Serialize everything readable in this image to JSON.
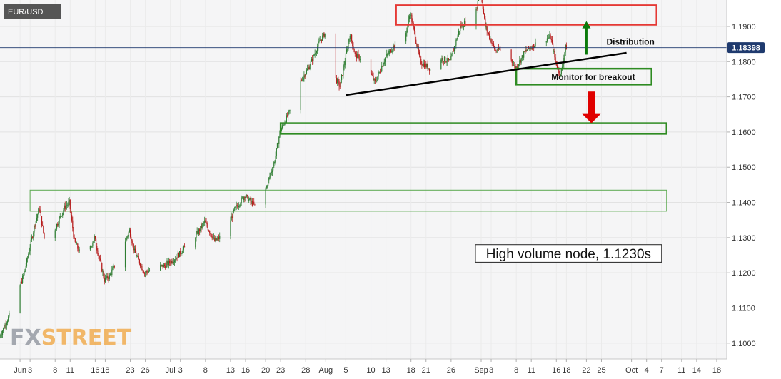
{
  "chart_data": {
    "type": "candlestick",
    "symbol": "EUR/USD",
    "current_price": 1.18398,
    "current_price_label": "1.18398",
    "ylim": [
      1.0955,
      1.1975
    ],
    "yticks": [
      1.19,
      1.18,
      1.17,
      1.16,
      1.15,
      1.14,
      1.13,
      1.12,
      1.11,
      1.1
    ],
    "ytick_labels": [
      "1.1900",
      "1.1800",
      "1.1700",
      "1.1600",
      "1.1500",
      "1.1400",
      "1.1300",
      "1.1200",
      "1.1100",
      "1.1000"
    ],
    "x_start": "2020-05-28",
    "x_end": "2020-10-20",
    "xticks": [
      {
        "date": "2020-06-01",
        "label": "Jun"
      },
      {
        "date": "2020-06-03",
        "label": "3"
      },
      {
        "date": "2020-06-08",
        "label": "8"
      },
      {
        "date": "2020-06-11",
        "label": "11"
      },
      {
        "date": "2020-06-16",
        "label": "16"
      },
      {
        "date": "2020-06-18",
        "label": "18"
      },
      {
        "date": "2020-06-23",
        "label": "23"
      },
      {
        "date": "2020-06-26",
        "label": "26"
      },
      {
        "date": "2020-07-01",
        "label": "Jul"
      },
      {
        "date": "2020-07-03",
        "label": "3"
      },
      {
        "date": "2020-07-08",
        "label": "8"
      },
      {
        "date": "2020-07-13",
        "label": "13"
      },
      {
        "date": "2020-07-16",
        "label": "16"
      },
      {
        "date": "2020-07-20",
        "label": "20"
      },
      {
        "date": "2020-07-23",
        "label": "23"
      },
      {
        "date": "2020-07-28",
        "label": "28"
      },
      {
        "date": "2020-08-01",
        "label": "Aug"
      },
      {
        "date": "2020-08-05",
        "label": "5"
      },
      {
        "date": "2020-08-10",
        "label": "10"
      },
      {
        "date": "2020-08-13",
        "label": "13"
      },
      {
        "date": "2020-08-18",
        "label": "18"
      },
      {
        "date": "2020-08-21",
        "label": "21"
      },
      {
        "date": "2020-08-26",
        "label": "26"
      },
      {
        "date": "2020-09-01",
        "label": "Sep"
      },
      {
        "date": "2020-09-03",
        "label": "3"
      },
      {
        "date": "2020-09-08",
        "label": "8"
      },
      {
        "date": "2020-09-11",
        "label": "11"
      },
      {
        "date": "2020-09-16",
        "label": "16"
      },
      {
        "date": "2020-09-18",
        "label": "18"
      },
      {
        "date": "2020-09-22",
        "label": "22"
      },
      {
        "date": "2020-09-25",
        "label": "25"
      },
      {
        "date": "2020-10-01",
        "label": "Oct"
      },
      {
        "date": "2020-10-04",
        "label": "4"
      },
      {
        "date": "2020-10-07",
        "label": "7"
      },
      {
        "date": "2020-10-11",
        "label": "11"
      },
      {
        "date": "2020-10-14",
        "label": "14"
      },
      {
        "date": "2020-10-18",
        "label": "18"
      }
    ],
    "grid": true,
    "price_path": [
      [
        "2020-05-28",
        1.1015
      ],
      [
        "2020-05-31",
        1.111
      ],
      [
        "2020-06-02",
        1.12
      ],
      [
        "2020-06-04",
        1.133
      ],
      [
        "2020-06-05",
        1.1385
      ],
      [
        "2020-06-06",
        1.13
      ],
      [
        "2020-06-08",
        1.132
      ],
      [
        "2020-06-10",
        1.1385
      ],
      [
        "2020-06-11",
        1.14
      ],
      [
        "2020-06-12",
        1.129
      ],
      [
        "2020-06-14",
        1.123
      ],
      [
        "2020-06-16",
        1.13
      ],
      [
        "2020-06-18",
        1.118
      ],
      [
        "2020-06-19",
        1.119
      ],
      [
        "2020-06-21",
        1.125
      ],
      [
        "2020-06-23",
        1.132
      ],
      [
        "2020-06-24",
        1.126
      ],
      [
        "2020-06-26",
        1.12
      ],
      [
        "2020-06-28",
        1.1215
      ],
      [
        "2020-06-30",
        1.122
      ],
      [
        "2020-07-02",
        1.124
      ],
      [
        "2020-07-04",
        1.127
      ],
      [
        "2020-07-06",
        1.13
      ],
      [
        "2020-07-08",
        1.1345
      ],
      [
        "2020-07-10",
        1.129
      ],
      [
        "2020-07-12",
        1.131
      ],
      [
        "2020-07-14",
        1.138
      ],
      [
        "2020-07-16",
        1.142
      ],
      [
        "2020-07-18",
        1.139
      ],
      [
        "2020-07-20",
        1.143
      ],
      [
        "2020-07-22",
        1.152
      ],
      [
        "2020-07-23",
        1.16
      ],
      [
        "2020-07-25",
        1.166
      ],
      [
        "2020-07-27",
        1.174
      ],
      [
        "2020-07-29",
        1.179
      ],
      [
        "2020-07-31",
        1.186
      ],
      [
        "2020-08-01",
        1.188
      ],
      [
        "2020-08-02",
        1.178
      ],
      [
        "2020-08-04",
        1.173
      ],
      [
        "2020-08-06",
        1.188
      ],
      [
        "2020-08-07",
        1.182
      ],
      [
        "2020-08-09",
        1.18
      ],
      [
        "2020-08-11",
        1.174
      ],
      [
        "2020-08-13",
        1.181
      ],
      [
        "2020-08-15",
        1.185
      ],
      [
        "2020-08-17",
        1.187
      ],
      [
        "2020-08-18",
        1.194
      ],
      [
        "2020-08-20",
        1.18
      ],
      [
        "2020-08-22",
        1.178
      ],
      [
        "2020-08-24",
        1.181
      ],
      [
        "2020-08-26",
        1.18
      ],
      [
        "2020-08-28",
        1.19
      ],
      [
        "2020-08-31",
        1.193
      ],
      [
        "2020-09-01",
        1.201
      ],
      [
        "2020-09-02",
        1.19
      ],
      [
        "2020-09-04",
        1.183
      ],
      [
        "2020-09-06",
        1.184
      ],
      [
        "2020-09-08",
        1.178
      ],
      [
        "2020-09-10",
        1.183
      ],
      [
        "2020-09-11",
        1.184
      ],
      [
        "2020-09-13",
        1.186
      ],
      [
        "2020-09-15",
        1.187
      ],
      [
        "2020-09-16",
        1.18
      ],
      [
        "2020-09-17",
        1.176
      ],
      [
        "2020-09-18",
        1.184
      ]
    ],
    "annotations": {
      "resistance_box_red": {
        "date_start": "2020-08-15",
        "date_end": "2020-10-06",
        "price_top": 1.196,
        "price_bottom": 1.1905
      },
      "support_box_green": {
        "date_start": "2020-07-23",
        "date_end": "2020-10-08",
        "price_top": 1.1625,
        "price_bottom": 1.1595
      },
      "volume_node_box": {
        "date_start": "2020-06-03",
        "date_end": "2020-10-08",
        "price_top": 1.1435,
        "price_bottom": 1.1375
      },
      "breakout_box": {
        "date_start": "2020-09-08",
        "date_end": "2020-10-05",
        "price_top": 1.178,
        "price_bottom": 1.1735
      },
      "trendline": {
        "date_start": "2020-08-05",
        "price_start": 1.1705,
        "date_end": "2020-09-30",
        "price_end": 1.1825
      },
      "arrow_up": {
        "date": "2020-09-22",
        "price_from": 1.182,
        "price_to": 1.1915
      },
      "arrow_down": {
        "date": "2020-09-23",
        "price_from": 1.1715,
        "price_to": 1.1625
      },
      "distribution_label": {
        "text": "Distribution",
        "date": "2020-09-26",
        "price": 1.1856
      },
      "breakout_label": {
        "text": "Monitor for breakout",
        "date": "2020-09-15",
        "price": 1.1756
      },
      "hvn_label": {
        "text": "High volume node, 1.1230s",
        "price_top": 1.128,
        "price_bottom": 1.123,
        "date_start": "2020-09-01",
        "date_end": "2020-10-07"
      }
    }
  },
  "colors": {
    "up_candle": "#2e7d32",
    "down_candle": "#b71c1c",
    "red_box": "#e53935",
    "green_box": "#2e8b22",
    "light_green": "#5aa84f",
    "arrow_up": "#0b7a0b",
    "arrow_down": "#e00000",
    "price_line": "#1f3a6e",
    "price_badge": "#1f3a6e"
  },
  "logo": {
    "part1": "FX",
    "part2": "STREET"
  }
}
